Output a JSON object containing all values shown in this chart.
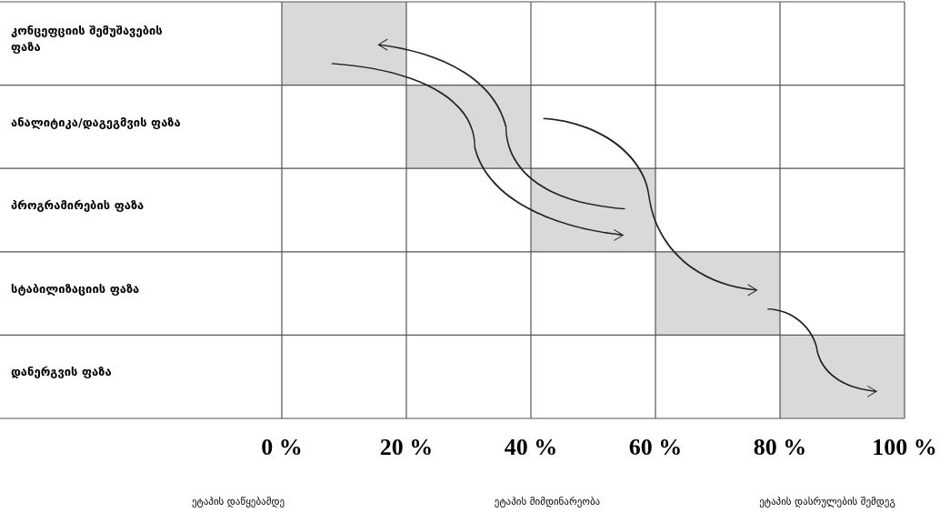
{
  "chart_data": {
    "type": "bar",
    "orientation": "horizontal",
    "categories": [
      "კონცეფციის შემუშავების ფაზა",
      "ანალიტიკა/დაგეგმვის ფაზა",
      "პროგრამირების ფაზა",
      "სტაბილიზაციის ფაზა",
      "დანერგვის ფაზა"
    ],
    "values": [
      20,
      20,
      20,
      20,
      20
    ],
    "base": [
      0,
      20,
      40,
      60,
      80
    ],
    "color": "#d9d9d9",
    "xlim": [
      0,
      100
    ],
    "xticks": [
      {
        "value": 0,
        "label": "0 %"
      },
      {
        "value": 20,
        "label": "20 %"
      },
      {
        "value": 40,
        "label": "40 %"
      },
      {
        "value": 60,
        "label": "60 %"
      },
      {
        "value": 80,
        "label": "80 %"
      },
      {
        "value": 100,
        "label": "100 %"
      }
    ],
    "grid": true,
    "annotations": [
      "ეტაპის დაწყებამდე",
      "ეტაპის მიმდინარეობა",
      "ეტაპის დასრულების შემდეგ"
    ]
  }
}
